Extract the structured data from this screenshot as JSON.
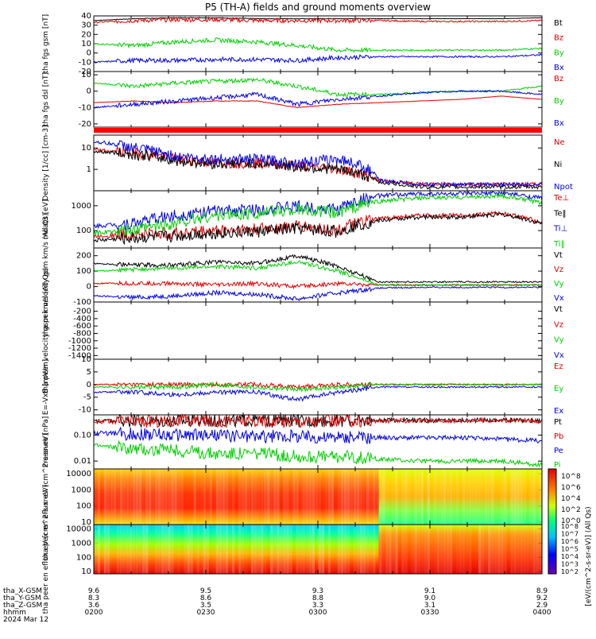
{
  "title": "P5 (TH-A) fields and ground moments overview",
  "x_axis": {
    "start": "0200",
    "end": "0400",
    "ticks": [
      "0200",
      "0230",
      "0300",
      "0330",
      "0400"
    ],
    "date": "2024 Mar 12",
    "ephemeris": [
      {
        "label": "tha_X-GSM",
        "values": [
          "9.6",
          "9.5",
          "9.3",
          "9.1",
          "8.9"
        ]
      },
      {
        "label": "tha_Y-GSM",
        "values": [
          "8.3",
          "8.6",
          "8.8",
          "9.0",
          "9.2"
        ]
      },
      {
        "label": "tha_Z-GSM",
        "values": [
          "3.6",
          "3.5",
          "3.3",
          "3.1",
          "2.9"
        ]
      },
      {
        "label": "hhmm",
        "values": [
          "0200",
          "0230",
          "0300",
          "0330",
          "0400"
        ]
      }
    ]
  },
  "colorbar": {
    "ticks": [
      "10^8",
      "10^6",
      "10^4",
      "10^2",
      "10^0"
    ],
    "ticks_lower": [
      "10^8",
      "10^7",
      "10^6",
      "10^5",
      "10^4",
      "10^3",
      "10^2"
    ],
    "label": "[eV/(cm^2-s-sr-eV)] (All Qs)"
  },
  "chart_data": [
    {
      "type": "line",
      "title": "",
      "ylabel": "tha fgs gsm [nT]",
      "ylim": [
        -20,
        40
      ],
      "yticks": [
        "40",
        "30",
        "20",
        "10",
        "0",
        "-10",
        "-20"
      ],
      "series": [
        {
          "name": "Bt",
          "color": "#000000",
          "values": [
            35,
            37,
            38,
            38,
            37,
            37,
            37,
            37,
            37,
            37,
            37,
            38
          ]
        },
        {
          "name": "Bz",
          "color": "#e00000",
          "values": [
            33,
            35,
            36,
            36,
            35,
            35,
            35,
            35,
            34,
            34,
            34,
            35
          ]
        },
        {
          "name": "By",
          "color": "#00d000",
          "values": [
            10,
            8,
            12,
            14,
            12,
            8,
            3,
            3,
            3,
            3,
            3,
            5
          ]
        },
        {
          "name": "Bx",
          "color": "#0000e0",
          "values": [
            -10,
            -8,
            -8,
            -7,
            -7,
            -8,
            -5,
            -4,
            -4,
            -4,
            -4,
            -2
          ]
        }
      ]
    },
    {
      "type": "line",
      "title": "",
      "ylabel": "tha fgs dsl [nT]",
      "ylim": [
        -22,
        12
      ],
      "yticks": [
        "10",
        "0",
        "-10",
        "-20"
      ],
      "series": [
        {
          "name": "Bz",
          "color": "#e00000",
          "values": [
            -7,
            -6,
            -7,
            -6,
            -6,
            -10,
            -8,
            -7,
            -6,
            -5,
            -3,
            -5
          ]
        },
        {
          "name": "By",
          "color": "#00d000",
          "values": [
            5,
            3,
            5,
            6,
            7,
            3,
            -2,
            -2,
            -1,
            0,
            0,
            3
          ]
        },
        {
          "name": "Bx",
          "color": "#0000e0",
          "values": [
            -10,
            -8,
            -6,
            -4,
            -2,
            -8,
            -5,
            -3,
            -1,
            0,
            0,
            -2
          ]
        }
      ]
    },
    {
      "type": "line",
      "title": "",
      "ylabel": "Density [1/cc] [cm-3]",
      "ylim": [
        0.1,
        40
      ],
      "yscale": "log",
      "yticks": [
        "10",
        "1"
      ],
      "series": [
        {
          "name": "Ne",
          "color": "#e00000",
          "values": [
            8,
            6,
            3,
            2,
            2,
            1.5,
            1,
            0.3,
            0.2,
            0.2,
            0.2,
            0.2
          ]
        },
        {
          "name": "Ni",
          "color": "#000000",
          "values": [
            7,
            5,
            2.5,
            1.8,
            2,
            1.3,
            1,
            0.25,
            0.15,
            0.15,
            0.15,
            0.15
          ]
        },
        {
          "name": "Npot",
          "color": "#0000e0",
          "values": [
            20,
            10,
            4,
            3,
            3,
            2,
            3,
            0.3,
            0.2,
            0.2,
            0.2,
            0.2
          ]
        }
      ]
    },
    {
      "type": "line",
      "title": "",
      "ylabel": "moat3 [eV]",
      "ylim": [
        20,
        4000
      ],
      "yscale": "log",
      "yticks": [
        "1000",
        "100"
      ],
      "series": [
        {
          "name": "Te⊥",
          "color": "#e00000",
          "values": [
            60,
            70,
            80,
            100,
            110,
            150,
            100,
            300,
            400,
            400,
            500,
            200
          ]
        },
        {
          "name": "Te‖",
          "color": "#000000",
          "values": [
            40,
            50,
            60,
            80,
            90,
            120,
            90,
            250,
            350,
            350,
            450,
            180
          ]
        },
        {
          "name": "Ti⊥",
          "color": "#0000e0",
          "values": [
            150,
            200,
            400,
            600,
            700,
            900,
            700,
            2500,
            3000,
            3000,
            3200,
            2000
          ]
        },
        {
          "name": "Ti‖",
          "color": "#00d000",
          "values": [
            80,
            100,
            200,
            400,
            500,
            700,
            500,
            1500,
            2000,
            2200,
            2500,
            1200
          ]
        }
      ]
    },
    {
      "type": "line",
      "title": "",
      "ylabel": "tha peir velocity gsm km/s (All Qs)",
      "ylim": [
        -100,
        250
      ],
      "yticks": [
        "200",
        "100",
        "0",
        "-100"
      ],
      "series": [
        {
          "name": "Vt",
          "color": "#000000",
          "values": [
            150,
            140,
            140,
            160,
            150,
            200,
            130,
            30,
            30,
            30,
            30,
            30
          ]
        },
        {
          "name": "Vz",
          "color": "#e00000",
          "values": [
            20,
            20,
            20,
            10,
            20,
            0,
            20,
            10,
            10,
            10,
            10,
            10
          ]
        },
        {
          "name": "Vy",
          "color": "#00d000",
          "values": [
            100,
            110,
            120,
            130,
            120,
            160,
            100,
            10,
            10,
            10,
            10,
            10
          ]
        },
        {
          "name": "Vx",
          "color": "#0000e0",
          "values": [
            -60,
            -70,
            -60,
            -40,
            -50,
            -80,
            -40,
            -10,
            -5,
            -5,
            -5,
            -5
          ]
        }
      ]
    },
    {
      "type": "line",
      "title": "",
      "ylabel": "tha peer velocity gsm km/s (All Qs)",
      "ylim": [
        -1500,
        50
      ],
      "yticks": [
        "-200",
        "-400",
        "-600",
        "-800",
        "-1000",
        "-1200",
        "-1400"
      ],
      "series": [
        {
          "name": "Vt",
          "color": "#000000",
          "values": []
        },
        {
          "name": "Vz",
          "color": "#e00000",
          "values": []
        },
        {
          "name": "Vy",
          "color": "#00d000",
          "values": []
        },
        {
          "name": "Vx",
          "color": "#0000e0",
          "values": []
        }
      ]
    },
    {
      "type": "line",
      "title": "",
      "ylabel": "E=-VxB [mV/m]",
      "ylim": [
        -12,
        10
      ],
      "yticks": [
        "10",
        "5",
        "0",
        "-5",
        "-10"
      ],
      "series": [
        {
          "name": "Ez",
          "color": "#e00000",
          "values": [
            0,
            0,
            0,
            0,
            0,
            -1,
            0,
            0,
            0,
            0,
            0,
            0
          ]
        },
        {
          "name": "Ey",
          "color": "#00d000",
          "values": [
            -1,
            -1,
            -1,
            0,
            -1,
            -2,
            -1,
            0,
            0,
            0,
            0,
            0
          ]
        },
        {
          "name": "Ex",
          "color": "#0000e0",
          "values": [
            -3,
            -3,
            -4,
            -3,
            -3,
            -6,
            -3,
            -1,
            -1,
            -1,
            -1,
            -1
          ]
        }
      ]
    },
    {
      "type": "line",
      "title": "",
      "ylabel": "Pressure [nPa]",
      "ylim": [
        0.005,
        0.6
      ],
      "yscale": "log",
      "yticks": [
        "0.10",
        "0.01"
      ],
      "series": [
        {
          "name": "Pt",
          "color": "#000000",
          "values": [
            0.35,
            0.36,
            0.37,
            0.37,
            0.36,
            0.36,
            0.36,
            0.37,
            0.37,
            0.37,
            0.38,
            0.36
          ]
        },
        {
          "name": "Pb",
          "color": "#e00000",
          "values": [
            0.33,
            0.34,
            0.35,
            0.35,
            0.34,
            0.34,
            0.34,
            0.35,
            0.36,
            0.36,
            0.37,
            0.35
          ]
        },
        {
          "name": "Pe",
          "color": "#0000e0",
          "values": [
            0.12,
            0.11,
            0.1,
            0.1,
            0.09,
            0.09,
            0.08,
            0.08,
            0.08,
            0.08,
            0.07,
            0.06
          ]
        },
        {
          "name": "Pi",
          "color": "#00d000",
          "values": [
            0.04,
            0.03,
            0.025,
            0.02,
            0.02,
            0.015,
            0.015,
            0.012,
            0.01,
            0.01,
            0.01,
            0.007
          ]
        }
      ]
    },
    {
      "type": "heatmap",
      "title": "",
      "ylabel": "tha peir en eflux eV (cm^2-s-sr-eV)",
      "yscale": "log",
      "ylim": [
        7,
        20000
      ],
      "yticks": [
        "10000",
        "1000",
        "100",
        "10"
      ]
    },
    {
      "type": "heatmap",
      "title": "",
      "ylabel": "tha peer en eflux eV (cm^2-s-sr-eV)",
      "yscale": "log",
      "ylim": [
        7,
        20000
      ],
      "yticks": [
        "10000",
        "1000",
        "100",
        "10"
      ]
    }
  ]
}
